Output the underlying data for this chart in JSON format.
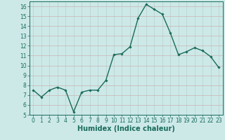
{
  "x": [
    0,
    1,
    2,
    3,
    4,
    5,
    6,
    7,
    8,
    9,
    10,
    11,
    12,
    13,
    14,
    15,
    16,
    17,
    18,
    19,
    20,
    21,
    22,
    23
  ],
  "y": [
    7.5,
    6.8,
    7.5,
    7.8,
    7.5,
    5.3,
    7.3,
    7.5,
    7.5,
    8.5,
    11.1,
    11.2,
    11.9,
    14.8,
    16.2,
    15.7,
    15.2,
    13.3,
    11.1,
    11.4,
    11.8,
    11.5,
    10.9,
    9.8
  ],
  "line_color": "#1a6b5a",
  "marker": "D",
  "marker_size": 1.8,
  "line_width": 1.0,
  "bg_color": "#cce9e8",
  "grid_color_v": "#b8cece",
  "grid_color_h": "#c9b4b4",
  "xlabel": "Humidex (Indice chaleur)",
  "ylim": [
    5,
    16.5
  ],
  "xlim": [
    -0.5,
    23.5
  ],
  "yticks": [
    5,
    6,
    7,
    8,
    9,
    10,
    11,
    12,
    13,
    14,
    15,
    16
  ],
  "xticks": [
    0,
    1,
    2,
    3,
    4,
    5,
    6,
    7,
    8,
    9,
    10,
    11,
    12,
    13,
    14,
    15,
    16,
    17,
    18,
    19,
    20,
    21,
    22,
    23
  ],
  "tick_fontsize": 5.5,
  "xlabel_fontsize": 7.0,
  "tick_color": "#1a6b5a",
  "axis_color": "#1a6b5a"
}
